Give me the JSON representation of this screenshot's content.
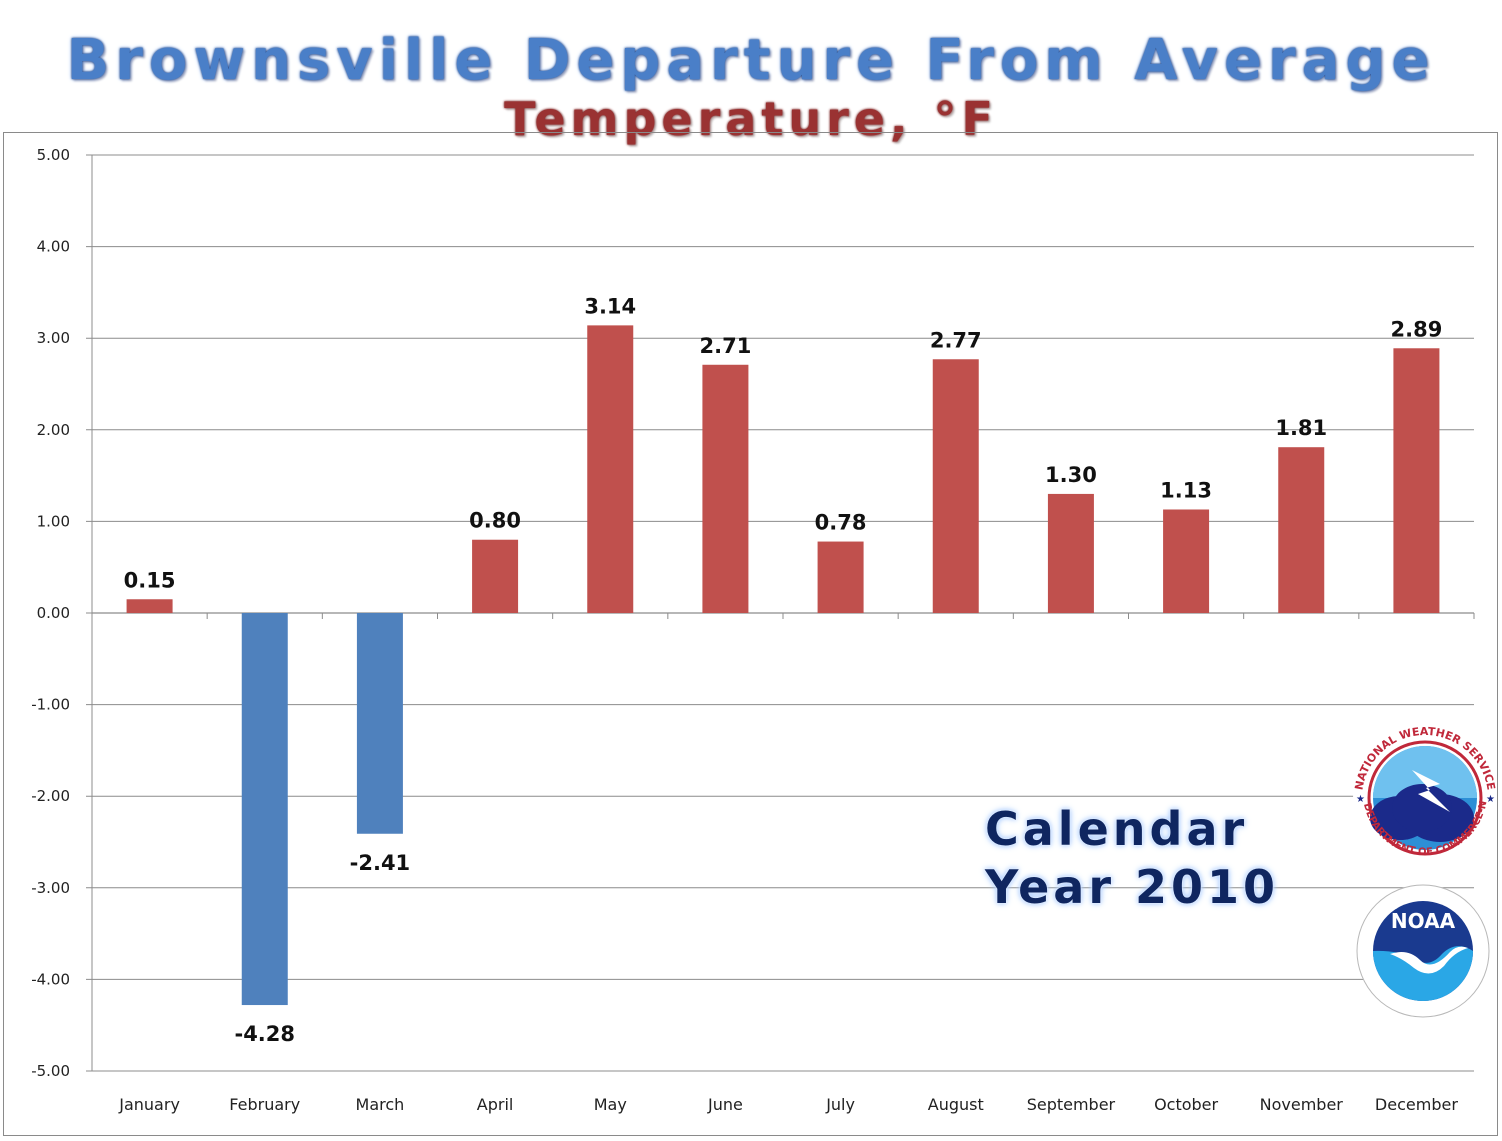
{
  "header": {
    "title": "Brownsville Departure From Average",
    "subtitle": "Temperature, °F"
  },
  "annotation": {
    "line1": "Calendar",
    "line2": "Year 2010"
  },
  "logos": {
    "nws": {
      "icon": "nws-logo-icon",
      "text": "NATIONAL WEATHER SERVICE · U.S. DEPARTMENT OF COMMERCE-NOAA"
    },
    "noaa": {
      "icon": "noaa-logo-icon",
      "text": "NOAA"
    }
  },
  "chart_data": {
    "type": "bar",
    "title": "Brownsville Departure From Average Temperature, °F",
    "categories": [
      "January",
      "February",
      "March",
      "April",
      "May",
      "June",
      "July",
      "August",
      "September",
      "October",
      "November",
      "December"
    ],
    "values": [
      0.15,
      -4.28,
      -2.41,
      0.8,
      3.14,
      2.71,
      0.78,
      2.77,
      1.3,
      1.13,
      1.81,
      2.89
    ],
    "value_labels": [
      "0.15",
      "-4.28",
      "-2.41",
      "0.80",
      "3.14",
      "2.71",
      "0.78",
      "2.77",
      "1.30",
      "1.13",
      "1.81",
      "2.89"
    ],
    "ylim": [
      -5,
      5
    ],
    "yticks": [
      "5.00",
      "4.00",
      "3.00",
      "2.00",
      "1.00",
      "0.00",
      "-1.00",
      "-2.00",
      "-3.00",
      "-4.00",
      "-5.00"
    ],
    "ytick_values": [
      5,
      4,
      3,
      2,
      1,
      0,
      -1,
      -2,
      -3,
      -4,
      -5
    ],
    "grid": true,
    "colors": {
      "positive": "#c0504d",
      "negative": "#4f81bd",
      "grid": "#8c8c8c"
    }
  }
}
